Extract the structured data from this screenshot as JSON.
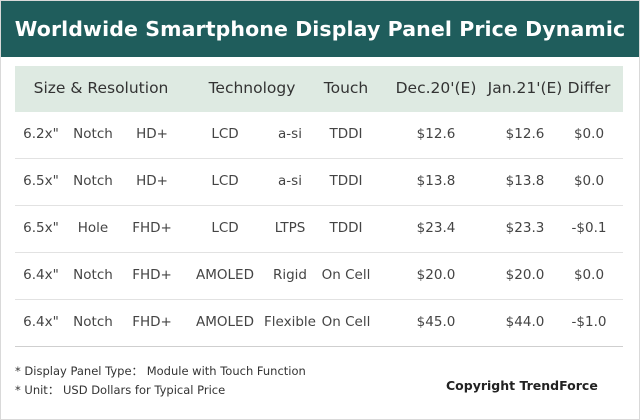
{
  "title": "Worldwide Smartphone Display Panel Price Dynamic",
  "headers": [
    "Size & Resolution",
    "Technology",
    "Touch",
    "Dec.20'(E)",
    "Jan.21'(E)",
    "Differ"
  ],
  "rows": [
    {
      "size": "6.2x\"",
      "form": "Notch",
      "res": "HD+",
      "tech": "LCD",
      "backplane": "a-si",
      "touch": "TDDI",
      "dec": "$12.6",
      "jan": "$12.6",
      "differ": "$0.0"
    },
    {
      "size": "6.5x\"",
      "form": "Notch",
      "res": "HD+",
      "tech": "LCD",
      "backplane": "a-si",
      "touch": "TDDI",
      "dec": "$13.8",
      "jan": "$13.8",
      "differ": "$0.0"
    },
    {
      "size": "6.5x\"",
      "form": "Hole",
      "res": "FHD+",
      "tech": "LCD",
      "backplane": "LTPS",
      "touch": "TDDI",
      "dec": "$23.4",
      "jan": "$23.3",
      "differ": "-$0.1"
    },
    {
      "size": "6.4x\"",
      "form": "Notch",
      "res": "FHD+",
      "tech": "AMOLED",
      "backplane": "Rigid",
      "touch": "On Cell",
      "dec": "$20.0",
      "jan": "$20.0",
      "differ": "$0.0"
    },
    {
      "size": "6.4x\"",
      "form": "Notch",
      "res": "FHD+",
      "tech": "AMOLED",
      "backplane": "Flexible",
      "touch": "On Cell",
      "dec": "$45.0",
      "jan": "$44.0",
      "differ": "-$1.0"
    }
  ],
  "notes": [
    "* Display Panel Type： Module with Touch Function",
    "* Unit： USD Dollars for Typical Price"
  ],
  "copyright": "Copyright TrendForce",
  "colors": {
    "title_bg": "#1f5d5c",
    "header_bg": "#deeae2"
  }
}
